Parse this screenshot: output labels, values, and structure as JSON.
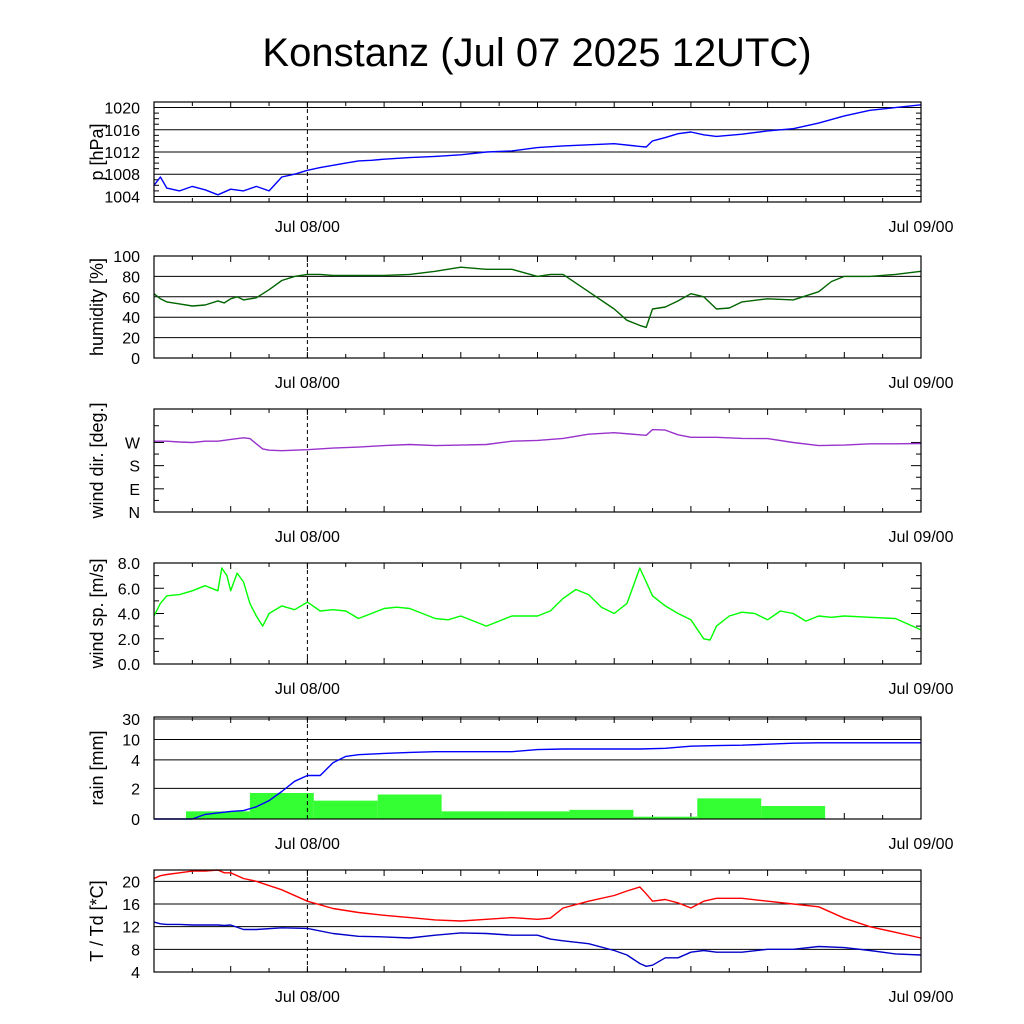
{
  "title": "Konstanz (Jul 07 2025 12UTC)",
  "time_labels": [
    "Jul 08/00",
    "Jul 09/00"
  ],
  "chart_data": [
    {
      "id": "pressure",
      "type": "line",
      "ylabel": "p [hPa]",
      "ylim": [
        1003,
        1021
      ],
      "yticks": [
        1004,
        1008,
        1012,
        1016,
        1020
      ],
      "grid": true,
      "x_hours": [
        0,
        0.5,
        1,
        2,
        3,
        4,
        5,
        6,
        7,
        8,
        9,
        10,
        11,
        12,
        13,
        14,
        15,
        16,
        17,
        18,
        20,
        22,
        24,
        26,
        28,
        30,
        32,
        34,
        36,
        38,
        38.5,
        39,
        40,
        41,
        42,
        43,
        44,
        46,
        48,
        50,
        52,
        54,
        56,
        58,
        60
      ],
      "series": [
        {
          "color": "#0000ff",
          "values": [
            1006,
            1007.5,
            1005.5,
            1005,
            1005.8,
            1005.2,
            1004.3,
            1005.3,
            1005,
            1005.8,
            1005,
            1007.5,
            1008,
            1008.7,
            1009.2,
            1009.6,
            1010,
            1010.4,
            1010.5,
            1010.7,
            1011,
            1011.2,
            1011.5,
            1012,
            1012.2,
            1012.8,
            1013.1,
            1013.3,
            1013.5,
            1013,
            1012.9,
            1014,
            1014.6,
            1015.3,
            1015.6,
            1015.1,
            1014.8,
            1015.2,
            1015.8,
            1016.2,
            1017.2,
            1018.5,
            1019.5,
            1020,
            1020.5
          ]
        }
      ]
    },
    {
      "id": "humidity",
      "type": "line",
      "ylabel": "humidity [%]",
      "ylim": [
        0,
        100
      ],
      "yticks": [
        0,
        20,
        40,
        60,
        80,
        100
      ],
      "grid": true,
      "x_hours": [
        0,
        0.5,
        1,
        2,
        3,
        4,
        5,
        5.5,
        6,
        6.5,
        7,
        8,
        9,
        10,
        11,
        12,
        13,
        14,
        16,
        18,
        20,
        22,
        24,
        26,
        28,
        30,
        31,
        32,
        34,
        36,
        37,
        38,
        38.5,
        39,
        40,
        41,
        42,
        43,
        44,
        45,
        46,
        48,
        50,
        52,
        53,
        54,
        56,
        58,
        60
      ],
      "series": [
        {
          "color": "#006400",
          "values": [
            63,
            58,
            55,
            53,
            51,
            52,
            56,
            54,
            58,
            60,
            57,
            59,
            67,
            76,
            80,
            82,
            82,
            81,
            81,
            81,
            82,
            85,
            89,
            87,
            87,
            80,
            82,
            82,
            65,
            48,
            37,
            32,
            30,
            48,
            50,
            56,
            63,
            60,
            48,
            49,
            55,
            58,
            57,
            65,
            75,
            80,
            80,
            82,
            85
          ]
        }
      ]
    },
    {
      "id": "wind_dir",
      "type": "line",
      "ylabel": "wind dir. [deg.]",
      "ylim": [
        0,
        400
      ],
      "yticks": [
        0,
        90,
        180,
        270
      ],
      "ytick_labels": [
        "N",
        "E",
        "S",
        "W"
      ],
      "grid": false,
      "x_hours": [
        0,
        1,
        2,
        3,
        4,
        5,
        6,
        7,
        7.5,
        8,
        8.5,
        9,
        10,
        12,
        14,
        16,
        18,
        20,
        22,
        24,
        26,
        28,
        30,
        31,
        32,
        34,
        36,
        38,
        38.5,
        39,
        40,
        41,
        42,
        44,
        46,
        48,
        50,
        52,
        54,
        56,
        58,
        60
      ],
      "series": [
        {
          "color": "#9932cc",
          "values": [
            275,
            275,
            272,
            270,
            275,
            275,
            282,
            288,
            285,
            265,
            245,
            240,
            238,
            242,
            248,
            252,
            258,
            262,
            258,
            260,
            262,
            275,
            278,
            282,
            286,
            302,
            308,
            300,
            298,
            320,
            318,
            300,
            290,
            290,
            286,
            285,
            270,
            258,
            260,
            265,
            265,
            266
          ]
        }
      ]
    },
    {
      "id": "wind_speed",
      "type": "line",
      "ylabel": "wind sp. [m/s]",
      "ylim": [
        0,
        8
      ],
      "yticks": [
        0,
        2,
        4,
        6,
        8
      ],
      "ytick_labels": [
        "0.0",
        "2.0",
        "4.0",
        "6.0",
        "8.0"
      ],
      "grid": false,
      "x_hours": [
        0,
        0.5,
        1,
        2,
        3,
        4,
        5,
        5.3,
        5.7,
        6,
        6.5,
        7,
        7.5,
        8,
        8.5,
        9,
        10,
        11,
        12,
        13,
        14,
        15,
        16,
        18,
        19,
        20,
        22,
        23,
        24,
        26,
        28,
        30,
        31,
        32,
        33,
        34,
        35,
        36,
        37,
        38,
        38.5,
        39,
        39.5,
        40,
        41,
        42,
        43,
        43.5,
        44,
        45,
        46,
        47,
        48,
        49,
        50,
        51,
        52,
        53,
        54,
        56,
        58,
        60
      ],
      "series": [
        {
          "color": "#00ff00",
          "values": [
            3.8,
            4.8,
            5.4,
            5.5,
            5.8,
            6.2,
            5.8,
            7.6,
            7.0,
            5.8,
            7.2,
            6.5,
            4.8,
            3.8,
            3.0,
            4.0,
            4.6,
            4.3,
            4.9,
            4.2,
            4.3,
            4.2,
            3.6,
            4.4,
            4.5,
            4.4,
            3.6,
            3.5,
            3.8,
            3.0,
            3.8,
            3.8,
            4.2,
            5.2,
            5.9,
            5.5,
            4.5,
            4.0,
            4.8,
            7.6,
            6.5,
            5.4,
            5.0,
            4.6,
            4.0,
            3.5,
            2.0,
            1.9,
            3.0,
            3.8,
            4.1,
            4.0,
            3.5,
            4.2,
            4.0,
            3.4,
            3.8,
            3.7,
            3.8,
            3.7,
            3.6,
            2.7
          ]
        }
      ]
    },
    {
      "id": "rain",
      "type": "bar_line",
      "ylabel": "rain [mm]",
      "yticks": [
        0,
        2,
        4,
        10,
        30
      ],
      "grid": true,
      "bars": {
        "color": "#33ff33",
        "bin_hours": 5,
        "start_hour": 2.5,
        "values": [
          0.5,
          1.7,
          1.2,
          1.6,
          0.5,
          0.5,
          0.6,
          0.15,
          1.35,
          0.85
        ]
      },
      "accumulated": {
        "color": "#0000ff",
        "x_hours": [
          0,
          2,
          3,
          4,
          5,
          6,
          7,
          8,
          9,
          10,
          11,
          12,
          13,
          14,
          15,
          16,
          17,
          18,
          20,
          22,
          24,
          26,
          28,
          30,
          32,
          34,
          36,
          38,
          40,
          42,
          44,
          46,
          48,
          50,
          52,
          54,
          56,
          58,
          60
        ],
        "values": [
          0,
          0,
          0,
          0.3,
          0.4,
          0.5,
          0.55,
          0.8,
          1.2,
          1.8,
          2.5,
          2.9,
          2.9,
          3.8,
          5.0,
          5.5,
          5.7,
          5.9,
          6.2,
          6.4,
          6.4,
          6.4,
          6.4,
          7.0,
          7.2,
          7.2,
          7.2,
          7.2,
          7.4,
          8.0,
          8.2,
          8.3,
          8.6,
          8.9,
          9.0,
          9.0,
          9.0,
          9.0,
          9.0
        ]
      }
    },
    {
      "id": "temperature",
      "type": "line",
      "ylabel": "T / Td [*C]",
      "ylim": [
        4,
        22
      ],
      "yticks": [
        4,
        8,
        12,
        16,
        20
      ],
      "grid": true,
      "x_hours": [
        0,
        0.5,
        1,
        2,
        3,
        4,
        5,
        5.5,
        6,
        7,
        8,
        10,
        12,
        14,
        16,
        18,
        20,
        22,
        24,
        26,
        28,
        30,
        31,
        32,
        34,
        36,
        37,
        38,
        38.5,
        39,
        40,
        41,
        42,
        43,
        44,
        46,
        48,
        50,
        52,
        54,
        56,
        58,
        60
      ],
      "series": [
        {
          "name": "T",
          "color": "#ff0000",
          "values": [
            20.5,
            21,
            21.2,
            21.5,
            21.8,
            21.8,
            22,
            21.5,
            21.5,
            20.5,
            20,
            18.5,
            16.5,
            15.2,
            14.5,
            14,
            13.6,
            13.2,
            13,
            13.3,
            13.6,
            13.3,
            13.5,
            15.3,
            16.5,
            17.5,
            18.3,
            19,
            17.8,
            16.5,
            16.8,
            16.2,
            15.3,
            16.5,
            17,
            17,
            16.5,
            16,
            15.5,
            13.5,
            12,
            11,
            10
          ]
        },
        {
          "name": "Td",
          "color": "#0000c8",
          "values": [
            12.8,
            12.5,
            12.4,
            12.4,
            12.3,
            12.3,
            12.3,
            12.2,
            12.3,
            11.5,
            11.5,
            11.8,
            11.7,
            10.8,
            10.3,
            10.2,
            10,
            10.5,
            10.9,
            10.8,
            10.5,
            10.5,
            9.8,
            9.5,
            9,
            7.8,
            7,
            5.5,
            5,
            5.2,
            6.5,
            6.5,
            7.5,
            7.8,
            7.5,
            7.5,
            8,
            8,
            8.5,
            8.3,
            7.8,
            7.2,
            7
          ]
        }
      ]
    }
  ]
}
